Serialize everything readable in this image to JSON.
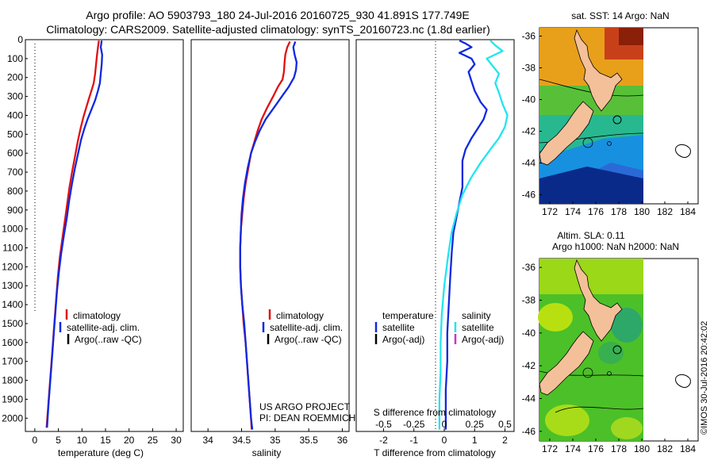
{
  "header": {
    "line1": "Argo profile: AO 5903793_180 24-Jul-2016 20160725_930 41.891S 177.749E",
    "line2": "Climatology: CARS2009. Satellite-adjusted climatology: synTS_20160723.nc (1.8d earlier)"
  },
  "colors": {
    "climatology": "#e01010",
    "satellite": "#1028e0",
    "argo": "#000000",
    "satellite_s": "#22e5f0",
    "argo_adj_s": "#cc33cc",
    "land": "#f4c09a"
  },
  "chart_data": [
    {
      "type": "line",
      "id": "temperature",
      "xlabel": "temperature (deg C)",
      "xlim": [
        -2,
        31.5
      ],
      "xticks": [
        0,
        5,
        10,
        15,
        20,
        25,
        30
      ],
      "ylim": [
        2070,
        0
      ],
      "yticks": [
        0,
        100,
        200,
        300,
        400,
        500,
        600,
        700,
        800,
        900,
        1000,
        1100,
        1200,
        1300,
        1400,
        1500,
        1600,
        1700,
        1800,
        1900,
        2000
      ],
      "legend": [
        "climatology",
        "satellite-adj. clim.",
        "Argo(..raw -QC)"
      ],
      "series": [
        {
          "name": "climatology",
          "color": "#e01010",
          "points": [
            [
              13.6,
              5
            ],
            [
              13.4,
              40
            ],
            [
              13.2,
              80
            ],
            [
              13.0,
              130
            ],
            [
              12.8,
              180
            ],
            [
              12.5,
              230
            ],
            [
              12.0,
              270
            ],
            [
              11.5,
              310
            ],
            [
              10.9,
              360
            ],
            [
              10.3,
              410
            ],
            [
              9.7,
              470
            ],
            [
              9.1,
              540
            ],
            [
              8.5,
              620
            ],
            [
              7.9,
              700
            ],
            [
              7.3,
              790
            ],
            [
              6.8,
              880
            ],
            [
              6.3,
              970
            ],
            [
              5.8,
              1060
            ],
            [
              5.3,
              1150
            ],
            [
              4.9,
              1250
            ],
            [
              4.6,
              1350
            ],
            [
              4.3,
              1450
            ],
            [
              4.0,
              1550
            ],
            [
              3.7,
              1650
            ],
            [
              3.4,
              1750
            ],
            [
              3.1,
              1850
            ],
            [
              2.8,
              1950
            ],
            [
              2.5,
              2050
            ]
          ]
        },
        {
          "name": "satellite-adj. clim.",
          "color": "#1028e0",
          "points": [
            [
              14.2,
              5
            ],
            [
              14.0,
              40
            ],
            [
              14.3,
              80
            ],
            [
              14.2,
              130
            ],
            [
              14.0,
              180
            ],
            [
              13.8,
              230
            ],
            [
              13.4,
              270
            ],
            [
              12.8,
              320
            ],
            [
              12.0,
              370
            ],
            [
              11.2,
              420
            ],
            [
              10.5,
              470
            ],
            [
              9.8,
              530
            ],
            [
              9.2,
              600
            ],
            [
              8.5,
              680
            ],
            [
              7.9,
              760
            ],
            [
              7.3,
              850
            ],
            [
              6.8,
              940
            ],
            [
              6.2,
              1030
            ],
            [
              5.6,
              1130
            ],
            [
              5.1,
              1230
            ],
            [
              4.7,
              1330
            ],
            [
              4.4,
              1430
            ],
            [
              4.1,
              1530
            ],
            [
              3.8,
              1630
            ],
            [
              3.5,
              1730
            ],
            [
              3.2,
              1830
            ],
            [
              2.9,
              1930
            ],
            [
              2.6,
              2050
            ]
          ]
        }
      ]
    },
    {
      "type": "line",
      "id": "salinity",
      "xlabel": "salinity",
      "xlim": [
        33.75,
        36.1
      ],
      "xticks": [
        34,
        34.5,
        35,
        35.5,
        36
      ],
      "ylim": [
        2070,
        0
      ],
      "legend": [
        "climatology",
        "satellite-adj. clim.",
        "Argo(..raw -QC)"
      ],
      "annotations": [
        "US ARGO PROJECT",
        "PI: DEAN ROEMMICH"
      ],
      "series": [
        {
          "name": "climatology",
          "color": "#e01010",
          "points": [
            [
              35.22,
              10
            ],
            [
              35.18,
              40
            ],
            [
              35.15,
              80
            ],
            [
              35.14,
              120
            ],
            [
              35.13,
              170
            ],
            [
              35.11,
              210
            ],
            [
              35.04,
              250
            ],
            [
              34.97,
              300
            ],
            [
              34.88,
              360
            ],
            [
              34.8,
              420
            ],
            [
              34.74,
              480
            ],
            [
              34.69,
              540
            ],
            [
              34.64,
              600
            ],
            [
              34.6,
              680
            ],
            [
              34.56,
              760
            ],
            [
              34.53,
              840
            ],
            [
              34.51,
              920
            ],
            [
              34.49,
              1000
            ],
            [
              34.48,
              1100
            ],
            [
              34.48,
              1200
            ],
            [
              34.49,
              1300
            ],
            [
              34.51,
              1400
            ],
            [
              34.53,
              1500
            ],
            [
              34.56,
              1600
            ],
            [
              34.58,
              1700
            ],
            [
              34.6,
              1800
            ],
            [
              34.62,
              1900
            ],
            [
              34.64,
              2000
            ],
            [
              34.65,
              2060
            ]
          ]
        },
        {
          "name": "satellite-adj. clim.",
          "color": "#1028e0",
          "points": [
            [
              35.3,
              10
            ],
            [
              35.27,
              40
            ],
            [
              35.29,
              80
            ],
            [
              35.32,
              120
            ],
            [
              35.31,
              160
            ],
            [
              35.28,
              200
            ],
            [
              35.2,
              250
            ],
            [
              35.1,
              300
            ],
            [
              34.98,
              360
            ],
            [
              34.86,
              420
            ],
            [
              34.77,
              480
            ],
            [
              34.7,
              540
            ],
            [
              34.64,
              600
            ],
            [
              34.59,
              680
            ],
            [
              34.55,
              760
            ],
            [
              34.52,
              840
            ],
            [
              34.5,
              920
            ],
            [
              34.49,
              1000
            ],
            [
              34.48,
              1100
            ],
            [
              34.48,
              1200
            ],
            [
              34.49,
              1300
            ],
            [
              34.51,
              1400
            ],
            [
              34.54,
              1500
            ],
            [
              34.56,
              1600
            ],
            [
              34.58,
              1700
            ],
            [
              34.6,
              1800
            ],
            [
              34.62,
              1900
            ],
            [
              34.64,
              2000
            ],
            [
              34.66,
              2060
            ]
          ]
        }
      ]
    },
    {
      "type": "line",
      "id": "difference",
      "xlabel": "T difference from climatology",
      "xlabel_top": "S difference from climatology",
      "xlim": [
        -2.9,
        2.3
      ],
      "xticks": [
        -2,
        -1,
        0,
        1,
        2
      ],
      "xticks_top": [
        "-0.5",
        "-0.25",
        "0",
        "0.25",
        "0.5"
      ],
      "ylim": [
        2070,
        0
      ],
      "legend_headers": [
        "temperature",
        "salinity"
      ],
      "legend_left": [
        "satellite",
        "Argo(-adj)"
      ],
      "legend_right": [
        "satellite",
        "Argo(-adj)"
      ],
      "series": [
        {
          "name": "satellite",
          "kind": "T",
          "color": "#1028e0",
          "points": [
            [
              0.5,
              5
            ],
            [
              0.7,
              20
            ],
            [
              0.9,
              40
            ],
            [
              0.5,
              70
            ],
            [
              0.9,
              100
            ],
            [
              1.0,
              130
            ],
            [
              0.8,
              170
            ],
            [
              0.9,
              220
            ],
            [
              1.0,
              270
            ],
            [
              1.2,
              330
            ],
            [
              1.4,
              370
            ],
            [
              1.3,
              420
            ],
            [
              1.1,
              470
            ],
            [
              0.9,
              520
            ],
            [
              0.7,
              580
            ],
            [
              0.6,
              640
            ],
            [
              0.6,
              700
            ],
            [
              0.6,
              780
            ],
            [
              0.5,
              860
            ],
            [
              0.4,
              940
            ],
            [
              0.3,
              1020
            ],
            [
              0.25,
              1120
            ],
            [
              0.2,
              1250
            ],
            [
              0.15,
              1400
            ],
            [
              0.1,
              1550
            ],
            [
              0.1,
              1700
            ],
            [
              0.05,
              1850
            ],
            [
              0.05,
              2000
            ],
            [
              0.05,
              2060
            ]
          ]
        },
        {
          "name": "satellite",
          "kind": "S",
          "color": "#22e5f0",
          "points": [
            [
              0.38,
              5
            ],
            [
              0.42,
              30
            ],
            [
              0.48,
              60
            ],
            [
              0.35,
              100
            ],
            [
              0.4,
              140
            ],
            [
              0.45,
              180
            ],
            [
              0.42,
              230
            ],
            [
              0.45,
              280
            ],
            [
              0.48,
              340
            ],
            [
              0.52,
              400
            ],
            [
              0.5,
              460
            ],
            [
              0.45,
              520
            ],
            [
              0.38,
              580
            ],
            [
              0.3,
              650
            ],
            [
              0.22,
              730
            ],
            [
              0.15,
              820
            ],
            [
              0.1,
              920
            ],
            [
              0.06,
              1020
            ],
            [
              0.03,
              1150
            ],
            [
              0.0,
              1300
            ],
            [
              -0.02,
              1450
            ],
            [
              -0.03,
              1600
            ],
            [
              -0.03,
              1750
            ],
            [
              -0.04,
              1900
            ],
            [
              -0.04,
              2060
            ]
          ]
        }
      ]
    }
  ],
  "maps": {
    "sst": {
      "title": "sat. SST: 14 Argo: NaN",
      "lat_ticks": [
        "-36",
        "-38",
        "-40",
        "-42",
        "-44",
        "-46"
      ],
      "lon_ticks": [
        "172",
        "174",
        "176",
        "178",
        "180",
        "182",
        "184"
      ]
    },
    "sla": {
      "title1": "Altim. SLA: 0.11",
      "title2": "Argo h1000: NaN h2000: NaN",
      "lat_ticks": [
        "-36",
        "-38",
        "-40",
        "-42",
        "-44",
        "-46"
      ],
      "lon_ticks": [
        "172",
        "174",
        "176",
        "178",
        "180",
        "182",
        "184"
      ]
    }
  },
  "footer": {
    "stamp": "©IMOS 30-Jul-2016 20:42:02"
  }
}
